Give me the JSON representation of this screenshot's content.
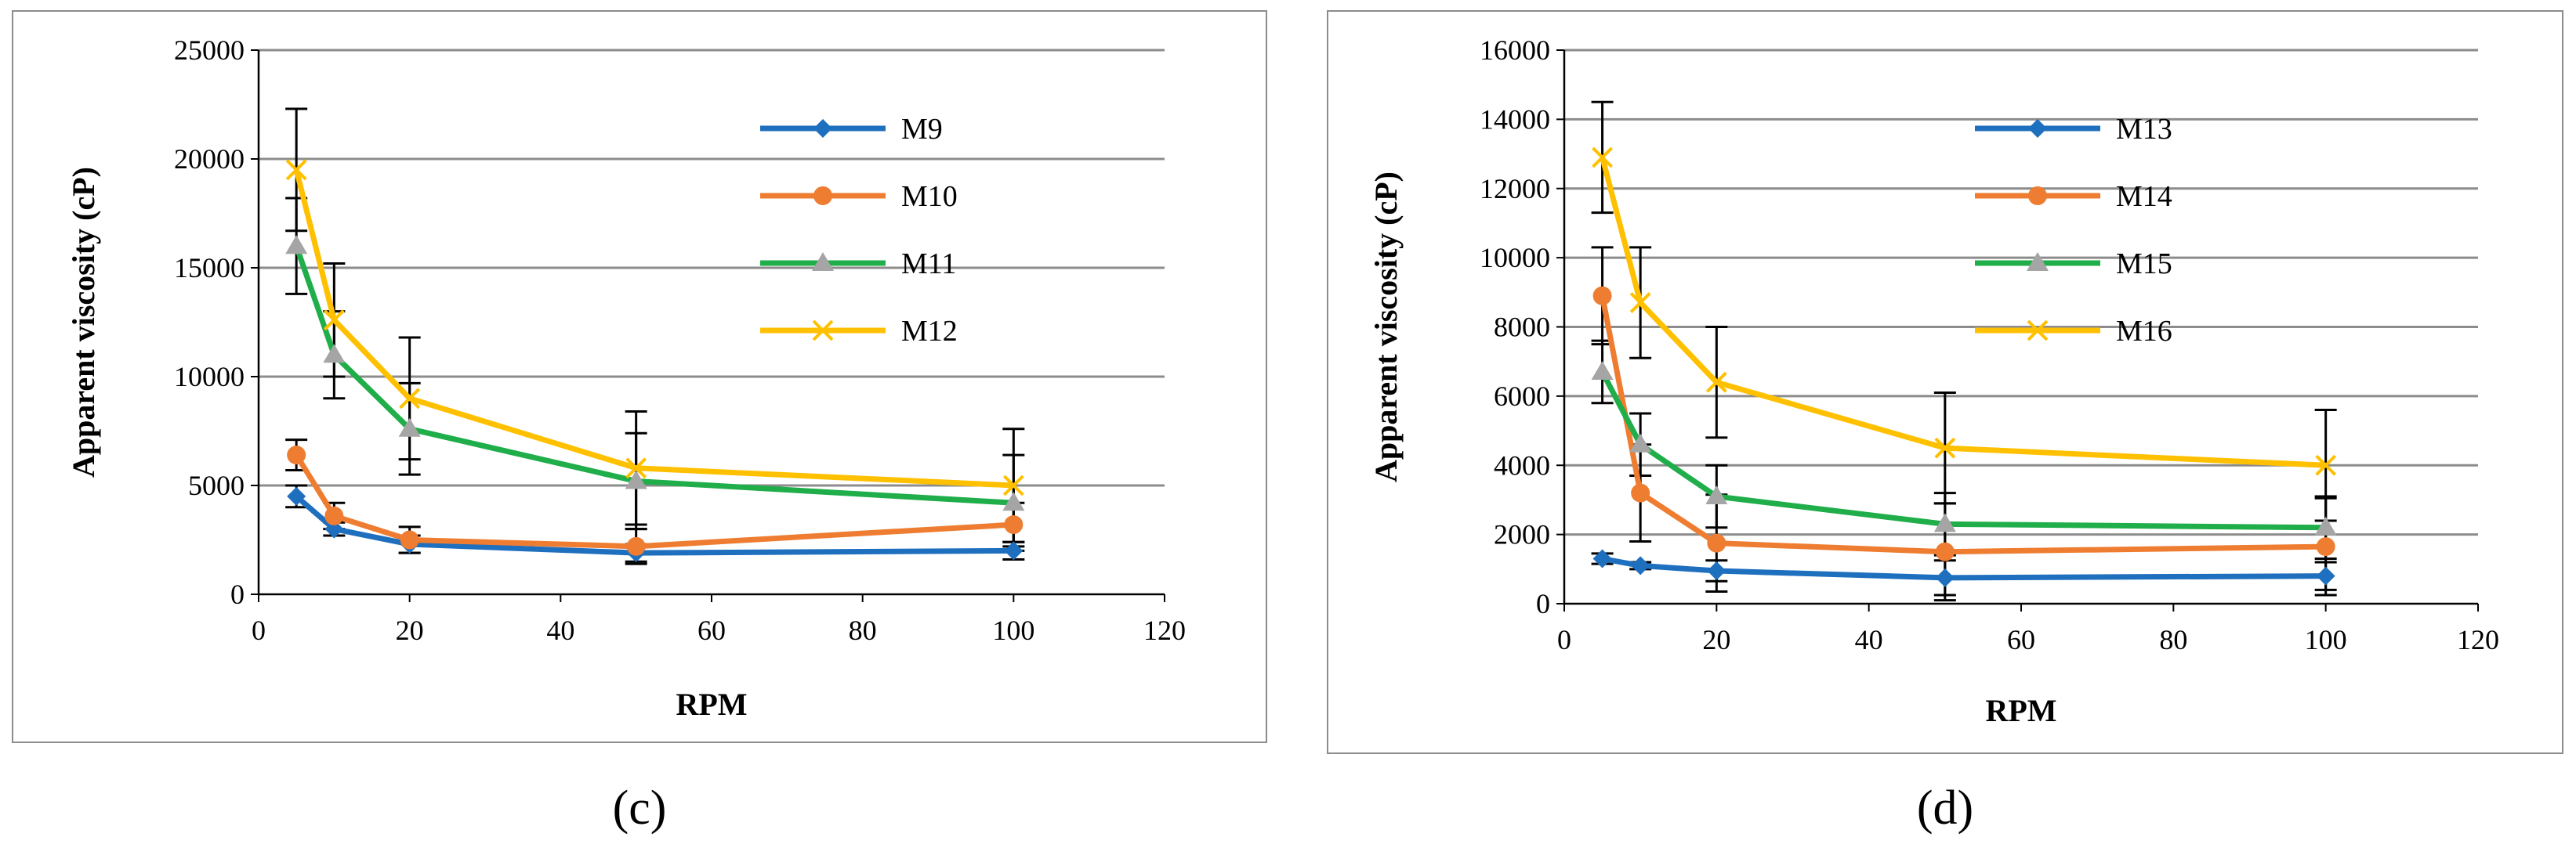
{
  "colors": {
    "M9": "#1f6fbf",
    "M10": "#ee7d31",
    "M11": "#1fae49",
    "M12": "#ffc000",
    "M13": "#1f6fbf",
    "M14": "#ee7d31",
    "M15": "#1fae49",
    "M16": "#ffc000",
    "grid": "#8c8c8c",
    "errorbar": "#000000",
    "frame": "#8c8c8c"
  },
  "chart_data": [
    {
      "type": "line",
      "caption": "(c)",
      "xlabel": "RPM",
      "ylabel": "Apparent viscosity (cP)",
      "xlim": [
        0,
        120
      ],
      "ylim": [
        0,
        25000
      ],
      "x_ticks": [
        0,
        20,
        40,
        60,
        80,
        100,
        120
      ],
      "y_ticks": [
        0,
        5000,
        10000,
        15000,
        20000,
        25000
      ],
      "grid": "horizontal",
      "legend_position": "top-right",
      "x": [
        5,
        10,
        20,
        50,
        100
      ],
      "series": [
        {
          "name": "M9",
          "marker": "diamond",
          "values": [
            4500,
            3000,
            2300,
            1900,
            2000
          ],
          "errors": [
            500,
            300,
            400,
            400,
            400
          ]
        },
        {
          "name": "M10",
          "marker": "circle",
          "values": [
            6400,
            3600,
            2500,
            2200,
            3200
          ],
          "errors": [
            700,
            600,
            600,
            800,
            1000
          ]
        },
        {
          "name": "M11",
          "marker": "triangle",
          "values": [
            16000,
            11000,
            7600,
            5200,
            4200
          ],
          "errors": [
            2200,
            2000,
            2100,
            2200,
            2200
          ]
        },
        {
          "name": "M12",
          "marker": "x",
          "values": [
            19500,
            12600,
            9000,
            5800,
            5000
          ],
          "errors": [
            2800,
            2600,
            2800,
            2600,
            2600
          ]
        }
      ]
    },
    {
      "type": "line",
      "caption": "(d)",
      "xlabel": "RPM",
      "ylabel": "Apparent viscosity (cP)",
      "xlim": [
        0,
        120
      ],
      "ylim": [
        0,
        16000
      ],
      "x_ticks": [
        0,
        20,
        40,
        60,
        80,
        100,
        120
      ],
      "y_ticks": [
        0,
        2000,
        4000,
        6000,
        8000,
        10000,
        12000,
        14000,
        16000
      ],
      "grid": "horizontal",
      "legend_position": "top-right",
      "x": [
        5,
        10,
        20,
        50,
        100
      ],
      "series": [
        {
          "name": "M13",
          "marker": "diamond",
          "values": [
            1300,
            1100,
            950,
            750,
            800
          ],
          "errors": [
            150,
            100,
            300,
            500,
            400
          ]
        },
        {
          "name": "M14",
          "marker": "circle",
          "values": [
            8900,
            3200,
            1750,
            1500,
            1650
          ],
          "errors": [
            1400,
            1400,
            1400,
            1400,
            1400
          ]
        },
        {
          "name": "M15",
          "marker": "triangle",
          "values": [
            6700,
            4600,
            3100,
            2300,
            2200
          ],
          "errors": [
            900,
            900,
            900,
            900,
            900
          ]
        },
        {
          "name": "M16",
          "marker": "x",
          "values": [
            12900,
            8700,
            6400,
            4500,
            4000
          ],
          "errors": [
            1600,
            1600,
            1600,
            1600,
            1600
          ]
        }
      ]
    }
  ]
}
